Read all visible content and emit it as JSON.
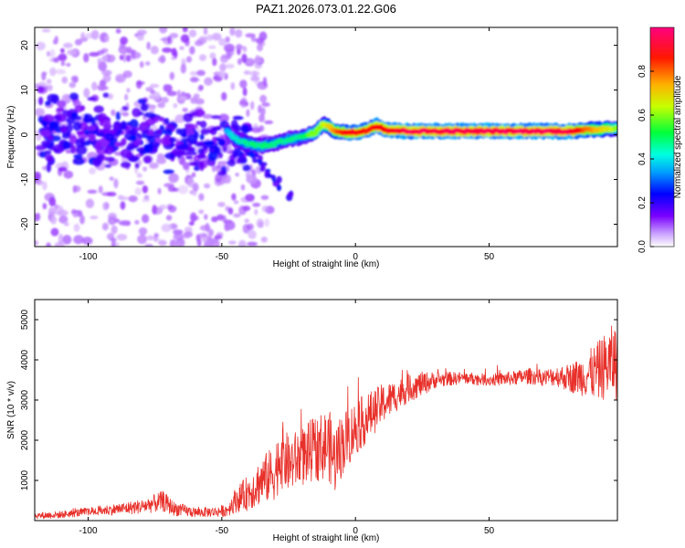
{
  "figure": {
    "title": "PAZ1.2026.073.01.22.G06",
    "colors": {
      "snr_line": "#e8302a",
      "frame": "#000000",
      "background": "#ffffff",
      "colorbar_stops": [
        "#ffffff",
        "#7a00ff",
        "#0000ff",
        "#00d8ff",
        "#00ff3a",
        "#c8ff00",
        "#ffb000",
        "#ff0000",
        "#ff007f"
      ]
    }
  },
  "chart_data": [
    {
      "type": "heatmap",
      "title": "PAZ1.2026.073.01.22.G06",
      "xlabel": "Height of straight line (km)",
      "ylabel": "Frequency (Hz)",
      "xlim": [
        -120,
        98
      ],
      "ylim": [
        -25,
        24
      ],
      "xticks": [
        -100,
        -50,
        0,
        50
      ],
      "xtick_labels": [
        "-100",
        "-50",
        "0",
        "50"
      ],
      "yticks": [
        -20,
        -10,
        0,
        10,
        20
      ],
      "ytick_labels": [
        "-20",
        "-10",
        "0",
        "10",
        "20"
      ],
      "colorbar": {
        "label": "Normalized spectral amplitude",
        "range": [
          0,
          1
        ],
        "ticks": [
          0.0,
          0.2,
          0.4,
          0.6,
          0.8
        ],
        "tick_labels": [
          "0.0",
          "0.2",
          "0.4",
          "0.6",
          "0.8"
        ]
      },
      "ridge": {
        "description_points_x": [
          -48,
          -45,
          -40,
          -35,
          -30,
          -25,
          -20,
          -15,
          -12,
          -8,
          -4,
          0,
          4,
          8,
          12,
          20,
          40,
          60,
          80,
          98
        ],
        "description_points_y": [
          1.0,
          -1.0,
          -2.0,
          -2.5,
          -2.0,
          -1.0,
          -0.5,
          0.5,
          2.5,
          1.0,
          0.5,
          0.5,
          1.0,
          2.0,
          1.0,
          0.8,
          0.8,
          0.8,
          0.8,
          1.5
        ],
        "amplitude": [
          0.35,
          0.4,
          0.45,
          0.45,
          0.45,
          0.45,
          0.45,
          0.6,
          0.6,
          0.8,
          0.85,
          0.9,
          0.85,
          0.9,
          0.9,
          0.95,
          0.95,
          0.95,
          0.95,
          0.6
        ]
      },
      "noise_region": {
        "x_range": [
          -120,
          -40
        ],
        "description": "scattered low-amplitude blobs",
        "dense_band_y": [
          -10,
          10
        ]
      }
    },
    {
      "type": "line",
      "title": "",
      "xlabel": "Height of straight line (km)",
      "ylabel": "SNR (10 * v/v)",
      "xlim": [
        -120,
        98
      ],
      "ylim": [
        0,
        5500
      ],
      "xticks": [
        -100,
        -50,
        0,
        50
      ],
      "xtick_labels": [
        "-100",
        "-50",
        "0",
        "50"
      ],
      "yticks": [
        1000,
        2000,
        3000,
        4000,
        5000
      ],
      "ytick_labels": [
        "1000",
        "2000",
        "3000",
        "4000",
        "5000"
      ],
      "series": [
        {
          "name": "SNR",
          "x": [
            -120,
            -110,
            -100,
            -90,
            -80,
            -72,
            -68,
            -60,
            -52,
            -48,
            -45,
            -40,
            -35,
            -30,
            -28,
            -25,
            -20,
            -15,
            -10,
            -8,
            -5,
            0,
            5,
            10,
            15,
            20,
            25,
            30,
            40,
            50,
            60,
            65,
            70,
            75,
            80,
            85,
            90,
            95,
            98
          ],
          "y": [
            120,
            150,
            220,
            280,
            350,
            480,
            300,
            200,
            220,
            260,
            500,
            700,
            1000,
            1200,
            1700,
            1400,
            1600,
            1800,
            1900,
            1500,
            1900,
            2300,
            2600,
            2900,
            3100,
            3300,
            3400,
            3500,
            3550,
            3500,
            3550,
            3600,
            3550,
            3600,
            3550,
            3600,
            3700,
            3900,
            4000
          ],
          "noise_amplitude": [
            80,
            90,
            110,
            140,
            180,
            260,
            180,
            120,
            130,
            160,
            300,
            450,
            600,
            700,
            900,
            700,
            750,
            800,
            900,
            900,
            800,
            700,
            600,
            500,
            400,
            350,
            300,
            200,
            150,
            150,
            180,
            200,
            200,
            250,
            350,
            500,
            700,
            900,
            1000
          ]
        }
      ]
    }
  ]
}
